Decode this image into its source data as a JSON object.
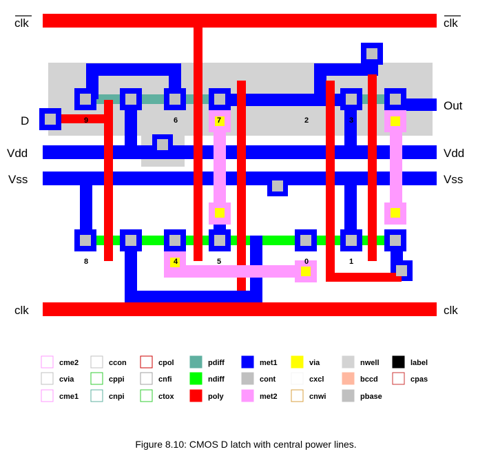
{
  "signals": {
    "clk_bar": "clk",
    "d": "D",
    "out": "Out",
    "vdd": "Vdd",
    "vss": "Vss",
    "clk": "clk"
  },
  "nodes": [
    "9",
    "6",
    "7",
    "2",
    "3",
    "8",
    "4",
    "5",
    "0",
    "1"
  ],
  "legend": [
    {
      "label": "cme2",
      "fill": "none",
      "stroke": "#ff99ff"
    },
    {
      "label": "cvia",
      "fill": "none",
      "stroke": "#c0c0c0"
    },
    {
      "label": "cme1",
      "fill": "none",
      "stroke": "#ff99ff"
    },
    {
      "label": "ccon",
      "fill": "none",
      "stroke": "#c0c0c0"
    },
    {
      "label": "cppi",
      "fill": "none",
      "stroke": "#33cc33"
    },
    {
      "label": "cnpi",
      "fill": "none",
      "stroke": "#5fb0a0"
    },
    {
      "label": "cpol",
      "fill": "none",
      "stroke": "#cc0000"
    },
    {
      "label": "cnfi",
      "fill": "none",
      "stroke": "#a0a0a0"
    },
    {
      "label": "ctox",
      "fill": "none",
      "stroke": "#33cc33"
    },
    {
      "label": "pdiff",
      "fill": "#5fb0a0",
      "stroke": "#5fb0a0"
    },
    {
      "label": "ndiff",
      "fill": "#00ff00",
      "stroke": "#00ff00"
    },
    {
      "label": "poly",
      "fill": "#ff0000",
      "stroke": "#ff0000"
    },
    {
      "label": "met1",
      "fill": "#0000ff",
      "stroke": "#0000ff"
    },
    {
      "label": "cont",
      "fill": "#c0c0c0",
      "stroke": "#c0c0c0"
    },
    {
      "label": "met2",
      "fill": "#ff99ff",
      "stroke": "#ff99ff"
    },
    {
      "label": "via",
      "fill": "#ffff00",
      "stroke": "#ffff00"
    },
    {
      "label": "cxcl",
      "fill": "none",
      "stroke": "#f4f4f4"
    },
    {
      "label": "cnwi",
      "fill": "none",
      "stroke": "#d9a040"
    },
    {
      "label": "nwell",
      "fill": "#d3d3d3",
      "stroke": "#d3d3d3"
    },
    {
      "label": "bccd",
      "fill": "#ffb8a0",
      "stroke": "#ffb8a0"
    },
    {
      "label": "pbase",
      "fill": "#c0c0c0",
      "stroke": "#c0c0c0"
    },
    {
      "label": "label",
      "fill": "#000000",
      "stroke": "#000000"
    },
    {
      "label": "cpas",
      "fill": "none",
      "stroke": "#cc3333"
    }
  ],
  "caption": "Figure 8.10:  CMOS D latch with central power lines."
}
